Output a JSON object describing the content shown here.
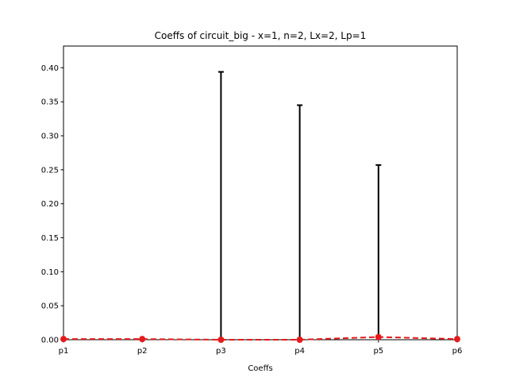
{
  "chart_data": {
    "type": "line",
    "title": "Coeffs of circuit_big - x=1, n=2, Lx=2, Lp=1",
    "xlabel": "Coeffs",
    "ylabel": "",
    "categories": [
      "p1",
      "p2",
      "p3",
      "p4",
      "p5",
      "p6"
    ],
    "ylim": [
      0,
      0.432
    ],
    "yticks": [
      0.0,
      0.05,
      0.1,
      0.15,
      0.2,
      0.25,
      0.3,
      0.35,
      0.4
    ],
    "ytick_labels": [
      "0.00",
      "0.05",
      "0.10",
      "0.15",
      "0.20",
      "0.25",
      "0.30",
      "0.35",
      "0.40"
    ],
    "grid": false,
    "series": [
      {
        "values": [
          0.001,
          0.001,
          0.0,
          0.0,
          0.004,
          0.001
        ],
        "error_upper": [
          0.0,
          0.0,
          0.394,
          0.345,
          0.253,
          0.0
        ],
        "color": "#e41a1c",
        "error_color": "#000000",
        "line_style": "dashed"
      }
    ]
  }
}
